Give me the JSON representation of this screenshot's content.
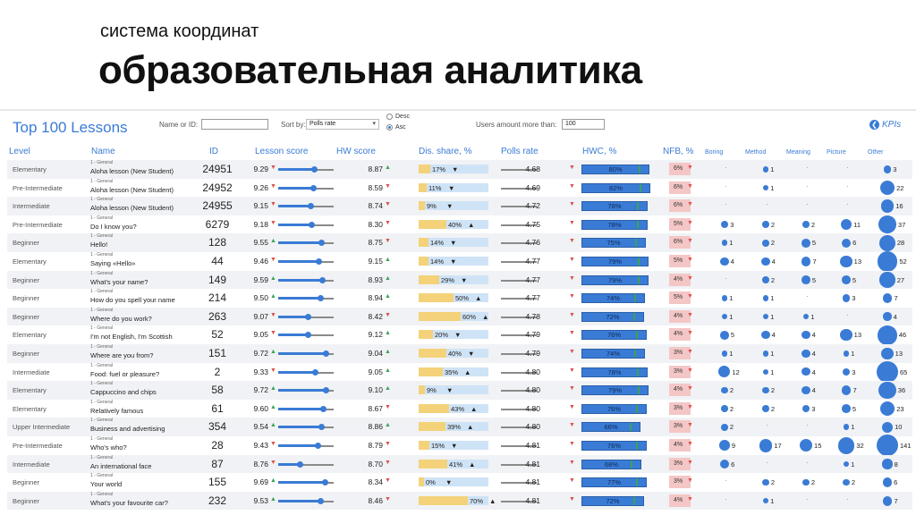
{
  "slide": {
    "subtitle": "система координат",
    "title": "образовательная аналитика"
  },
  "dashboard": {
    "title": "Top 100 Lessons",
    "name_or_id_label": "Name or ID:",
    "name_or_id_value": "",
    "sort_label": "Sort by:",
    "sort_value": "Polls rate",
    "order_desc": "Desc",
    "order_asc": "Asc",
    "order_selected": "Asc",
    "users_label": "Users amount more than:",
    "users_value": "100",
    "kpis_label": "KPIs",
    "colors": {
      "accent": "#3a7bd5",
      "red": "#d9534f",
      "green": "#3aa35a",
      "dis_bar": "#f4d27a",
      "nfb": "#f4c6c6"
    }
  },
  "headers": {
    "level": "Level",
    "name": "Name",
    "id": "ID",
    "lesson_score": "Lesson score",
    "hw_score": "HW score",
    "dis_share": "Dis. share, %",
    "polls_rate": "Polls rate",
    "hwc": "HWC, %",
    "nfb": "NFB, %",
    "boring": "Boring",
    "method": "Method",
    "meaning": "Meaning",
    "picture": "Picture",
    "other": "Other"
  },
  "rows": [
    {
      "level": "Elementary",
      "cat": "1 - General",
      "name": "Aloha lesson (New Student)",
      "id": "24951",
      "ls": "9.29",
      "ls_dir": "down",
      "hw": "8.87",
      "hw_dir": "up",
      "dis": "17%",
      "dis_v": 17,
      "dis_dir": "down",
      "poll": "4.68",
      "poll_dir": "down",
      "hwc": "80%",
      "hwc_v": 80,
      "nfb": "6%",
      "boring": null,
      "method": 1,
      "meaning": null,
      "picture": null,
      "other": 3
    },
    {
      "level": "Pre-Intermediate",
      "cat": "1 - General",
      "name": "Aloha lesson (New Student)",
      "id": "24952",
      "ls": "9.26",
      "ls_dir": "down",
      "hw": "8.59",
      "hw_dir": "down",
      "dis": "11%",
      "dis_v": 11,
      "dis_dir": "down",
      "poll": "4.69",
      "poll_dir": "down",
      "hwc": "82%",
      "hwc_v": 82,
      "nfb": "6%",
      "boring": null,
      "method": 1,
      "meaning": null,
      "picture": null,
      "other": 22
    },
    {
      "level": "Intermediate",
      "cat": "1 - General",
      "name": "Aloha lesson (New Student)",
      "id": "24955",
      "ls": "9.15",
      "ls_dir": "down",
      "hw": "8.74",
      "hw_dir": "down",
      "dis": "9%",
      "dis_v": 9,
      "dis_dir": "down",
      "poll": "4.72",
      "poll_dir": "down",
      "hwc": "78%",
      "hwc_v": 78,
      "nfb": "6%",
      "boring": null,
      "method": null,
      "meaning": null,
      "picture": null,
      "other": 16
    },
    {
      "level": "Pre-Intermediate",
      "cat": "1 - General",
      "name": "Do I know you?",
      "id": "6279",
      "ls": "9.18",
      "ls_dir": "down",
      "hw": "8.30",
      "hw_dir": "down",
      "dis": "40%",
      "dis_v": 40,
      "dis_dir": "up",
      "poll": "4.75",
      "poll_dir": "down",
      "hwc": "78%",
      "hwc_v": 78,
      "nfb": "5%",
      "boring": 3,
      "method": 2,
      "meaning": 2,
      "picture": 11,
      "other": 37
    },
    {
      "level": "Beginner",
      "cat": "1 - General",
      "name": "Hello!",
      "id": "128",
      "ls": "9.55",
      "ls_dir": "up",
      "hw": "8.75",
      "hw_dir": "down",
      "dis": "14%",
      "dis_v": 14,
      "dis_dir": "down",
      "poll": "4.76",
      "poll_dir": "down",
      "hwc": "75%",
      "hwc_v": 75,
      "nfb": "6%",
      "boring": 1,
      "method": 2,
      "meaning": 5,
      "picture": 6,
      "other": 28
    },
    {
      "level": "Elementary",
      "cat": "1 - General",
      "name": "Saying «Hello»",
      "id": "44",
      "ls": "9.46",
      "ls_dir": "down",
      "hw": "9.15",
      "hw_dir": "up",
      "dis": "14%",
      "dis_v": 14,
      "dis_dir": "down",
      "poll": "4.77",
      "poll_dir": "down",
      "hwc": "79%",
      "hwc_v": 79,
      "nfb": "5%",
      "boring": 4,
      "method": 4,
      "meaning": 7,
      "picture": 13,
      "other": 52
    },
    {
      "level": "Beginner",
      "cat": "1 - General",
      "name": "What's your name?",
      "id": "149",
      "ls": "9.59",
      "ls_dir": "up",
      "hw": "8.93",
      "hw_dir": "up",
      "dis": "29%",
      "dis_v": 29,
      "dis_dir": "down",
      "poll": "4.77",
      "poll_dir": "down",
      "hwc": "79%",
      "hwc_v": 79,
      "nfb": "4%",
      "boring": null,
      "method": 2,
      "meaning": 5,
      "picture": 5,
      "other": 27
    },
    {
      "level": "Beginner",
      "cat": "1 - General",
      "name": "How do you spell your name",
      "id": "214",
      "ls": "9.50",
      "ls_dir": "up",
      "hw": "8.94",
      "hw_dir": "up",
      "dis": "50%",
      "dis_v": 50,
      "dis_dir": "up",
      "poll": "4.77",
      "poll_dir": "down",
      "hwc": "74%",
      "hwc_v": 74,
      "nfb": "5%",
      "boring": 1,
      "method": 1,
      "meaning": null,
      "picture": 3,
      "other": 7
    },
    {
      "level": "Beginner",
      "cat": "1 - General",
      "name": "Where do you work?",
      "id": "263",
      "ls": "9.07",
      "ls_dir": "down",
      "hw": "8.42",
      "hw_dir": "down",
      "dis": "60%",
      "dis_v": 60,
      "dis_dir": "up",
      "poll": "4.78",
      "poll_dir": "down",
      "hwc": "72%",
      "hwc_v": 72,
      "nfb": "4%",
      "boring": 1,
      "method": 1,
      "meaning": 1,
      "picture": null,
      "other": 4
    },
    {
      "level": "Elementary",
      "cat": "1 - General",
      "name": "I'm not English, I'm Scottish",
      "id": "52",
      "ls": "9.05",
      "ls_dir": "down",
      "hw": "9.12",
      "hw_dir": "up",
      "dis": "20%",
      "dis_v": 20,
      "dis_dir": "down",
      "poll": "4.79",
      "poll_dir": "down",
      "hwc": "76%",
      "hwc_v": 76,
      "nfb": "4%",
      "boring": 5,
      "method": 4,
      "meaning": 4,
      "picture": 13,
      "other": 46
    },
    {
      "level": "Beginner",
      "cat": "1 - General",
      "name": "Where are you from?",
      "id": "151",
      "ls": "9.72",
      "ls_dir": "up",
      "hw": "9.04",
      "hw_dir": "up",
      "dis": "40%",
      "dis_v": 40,
      "dis_dir": "down",
      "poll": "4.79",
      "poll_dir": "down",
      "hwc": "74%",
      "hwc_v": 74,
      "nfb": "3%",
      "boring": 1,
      "method": 1,
      "meaning": 4,
      "picture": 1,
      "other": 13
    },
    {
      "level": "Intermediate",
      "cat": "1 - General",
      "name": "Food: fuel or pleasure?",
      "id": "2",
      "ls": "9.33",
      "ls_dir": "down",
      "hw": "9.05",
      "hw_dir": "up",
      "dis": "35%",
      "dis_v": 35,
      "dis_dir": "up",
      "poll": "4.80",
      "poll_dir": "down",
      "hwc": "78%",
      "hwc_v": 78,
      "nfb": "3%",
      "boring": 12,
      "method": 1,
      "meaning": 4,
      "picture": 3,
      "other": 65
    },
    {
      "level": "Elementary",
      "cat": "1 - General",
      "name": "Cappuccino and chips",
      "id": "58",
      "ls": "9.72",
      "ls_dir": "up",
      "hw": "9.10",
      "hw_dir": "up",
      "dis": "9%",
      "dis_v": 9,
      "dis_dir": "down",
      "poll": "4.80",
      "poll_dir": "down",
      "hwc": "79%",
      "hwc_v": 79,
      "nfb": "4%",
      "boring": 2,
      "method": 2,
      "meaning": 4,
      "picture": 7,
      "other": 36
    },
    {
      "level": "Elementary",
      "cat": "1 - General",
      "name": "Relatively famous",
      "id": "61",
      "ls": "9.60",
      "ls_dir": "up",
      "hw": "8.67",
      "hw_dir": "down",
      "dis": "43%",
      "dis_v": 43,
      "dis_dir": "up",
      "poll": "4.80",
      "poll_dir": "down",
      "hwc": "76%",
      "hwc_v": 76,
      "nfb": "3%",
      "boring": 2,
      "method": 2,
      "meaning": 3,
      "picture": 5,
      "other": 23
    },
    {
      "level": "Upper Intermediate",
      "cat": "1 - General",
      "name": "Business and advertising",
      "id": "354",
      "ls": "9.54",
      "ls_dir": "up",
      "hw": "8.86",
      "hw_dir": "up",
      "dis": "39%",
      "dis_v": 39,
      "dis_dir": "up",
      "poll": "4.80",
      "poll_dir": "down",
      "hwc": "66%",
      "hwc_v": 66,
      "nfb": "3%",
      "boring": 2,
      "method": null,
      "meaning": null,
      "picture": 1,
      "other": 10
    },
    {
      "level": "Pre-Intermediate",
      "cat": "1 - General",
      "name": "Who's who?",
      "id": "28",
      "ls": "9.43",
      "ls_dir": "down",
      "hw": "8.79",
      "hw_dir": "down",
      "dis": "15%",
      "dis_v": 15,
      "dis_dir": "down",
      "poll": "4.81",
      "poll_dir": "down",
      "hwc": "76%",
      "hwc_v": 76,
      "nfb": "4%",
      "boring": 9,
      "method": 17,
      "meaning": 15,
      "picture": 32,
      "other": 141
    },
    {
      "level": "Intermediate",
      "cat": "1 - General",
      "name": "An international face",
      "id": "87",
      "ls": "8.76",
      "ls_dir": "down",
      "hw": "8.70",
      "hw_dir": "down",
      "dis": "41%",
      "dis_v": 41,
      "dis_dir": "up",
      "poll": "4.81",
      "poll_dir": "down",
      "hwc": "68%",
      "hwc_v": 68,
      "nfb": "3%",
      "boring": 6,
      "method": null,
      "meaning": null,
      "picture": 1,
      "other": 8
    },
    {
      "level": "Beginner",
      "cat": "1 - General",
      "name": "Your world",
      "id": "155",
      "ls": "9.69",
      "ls_dir": "up",
      "hw": "8.34",
      "hw_dir": "down",
      "dis": "0%",
      "dis_v": 0,
      "dis_dir": "down",
      "poll": "4.81",
      "poll_dir": "down",
      "hwc": "77%",
      "hwc_v": 77,
      "nfb": "3%",
      "boring": null,
      "method": 2,
      "meaning": 2,
      "picture": 2,
      "other": 6
    },
    {
      "level": "Beginner",
      "cat": "1 - General",
      "name": "What's your favourite car?",
      "id": "232",
      "ls": "9.53",
      "ls_dir": "up",
      "hw": "8.46",
      "hw_dir": "down",
      "dis": "70%",
      "dis_v": 70,
      "dis_dir": "up",
      "poll": "4.81",
      "poll_dir": "down",
      "hwc": "72%",
      "hwc_v": 72,
      "nfb": "4%",
      "boring": null,
      "method": 1,
      "meaning": null,
      "picture": null,
      "other": 7
    }
  ]
}
